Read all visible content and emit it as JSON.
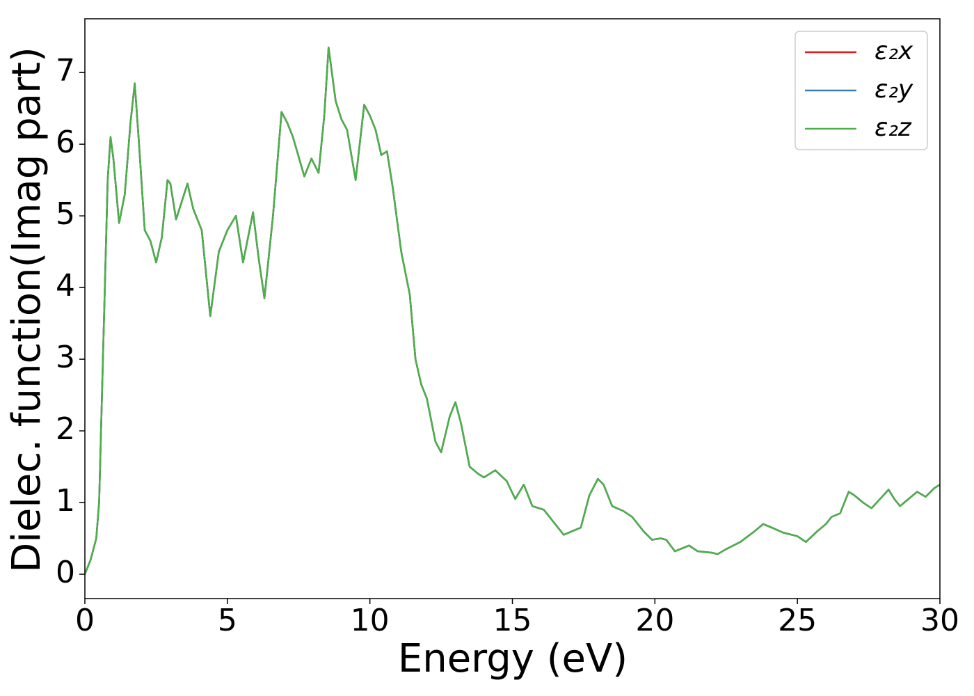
{
  "chart_data": {
    "type": "line",
    "xlabel": "Energy (eV)",
    "ylabel": "Dielec. function(Imag part)",
    "xlim": [
      0,
      30
    ],
    "ylim": [
      -0.34,
      7.75
    ],
    "xticks": [
      0,
      5,
      10,
      15,
      20,
      25,
      30
    ],
    "yticks": [
      0,
      1,
      2,
      3,
      4,
      5,
      6,
      7
    ],
    "grid": false,
    "legend": "upper right",
    "x": [
      0,
      0.2,
      0.4,
      0.5,
      0.6,
      0.7,
      0.8,
      0.9,
      1.0,
      1.2,
      1.4,
      1.6,
      1.75,
      1.9,
      2.1,
      2.3,
      2.5,
      2.7,
      2.9,
      3.0,
      3.2,
      3.4,
      3.6,
      3.8,
      4.1,
      4.4,
      4.7,
      5.0,
      5.3,
      5.55,
      5.9,
      6.1,
      6.3,
      6.6,
      6.9,
      7.1,
      7.3,
      7.7,
      7.95,
      8.2,
      8.4,
      8.55,
      8.8,
      9.0,
      9.2,
      9.5,
      9.8,
      10.0,
      10.2,
      10.4,
      10.6,
      10.8,
      11.1,
      11.4,
      11.6,
      11.8,
      12.0,
      12.3,
      12.5,
      12.8,
      13.0,
      13.2,
      13.5,
      13.8,
      14.0,
      14.4,
      14.8,
      15.1,
      15.4,
      15.7,
      16.1,
      16.4,
      16.8,
      17.1,
      17.4,
      17.7,
      18.0,
      18.2,
      18.5,
      18.9,
      19.2,
      19.6,
      19.9,
      20.2,
      20.4,
      20.7,
      21.2,
      21.5,
      22.0,
      22.2,
      22.5,
      23.0,
      23.5,
      23.8,
      24.1,
      24.5,
      25.0,
      25.3,
      25.7,
      26.0,
      26.2,
      26.5,
      26.8,
      27.0,
      27.3,
      27.6,
      28.2,
      28.4,
      28.6,
      28.9,
      29.2,
      29.5,
      29.8,
      30.0
    ],
    "series": [
      {
        "name": "ε₂x",
        "color": "#e41a1c",
        "values": [
          0,
          0.2,
          0.5,
          1.0,
          2.5,
          4.0,
          5.5,
          6.1,
          5.8,
          4.9,
          5.3,
          6.3,
          6.85,
          6.0,
          4.8,
          4.65,
          4.35,
          4.7,
          5.5,
          5.45,
          4.95,
          5.2,
          5.45,
          5.1,
          4.8,
          3.6,
          4.5,
          4.8,
          5.0,
          4.35,
          5.05,
          4.4,
          3.85,
          5.0,
          6.45,
          6.3,
          6.1,
          5.55,
          5.8,
          5.6,
          6.4,
          7.35,
          6.6,
          6.35,
          6.2,
          5.5,
          6.55,
          6.4,
          6.2,
          5.85,
          5.9,
          5.4,
          4.5,
          3.9,
          3.0,
          2.65,
          2.45,
          1.85,
          1.7,
          2.2,
          2.4,
          2.1,
          1.5,
          1.4,
          1.35,
          1.45,
          1.3,
          1.05,
          1.25,
          0.95,
          0.9,
          0.75,
          0.55,
          0.6,
          0.65,
          1.1,
          1.33,
          1.25,
          0.95,
          0.88,
          0.8,
          0.6,
          0.48,
          0.5,
          0.48,
          0.32,
          0.4,
          0.32,
          0.3,
          0.28,
          0.35,
          0.45,
          0.6,
          0.7,
          0.65,
          0.58,
          0.53,
          0.45,
          0.6,
          0.7,
          0.8,
          0.85,
          1.15,
          1.1,
          1.0,
          0.92,
          1.18,
          1.05,
          0.95,
          1.05,
          1.15,
          1.08,
          1.2,
          1.25
        ]
      },
      {
        "name": "ε₂y",
        "color": "#377eb8",
        "values": [
          0,
          0.2,
          0.5,
          1.0,
          2.5,
          4.0,
          5.5,
          6.1,
          5.8,
          4.9,
          5.3,
          6.3,
          6.85,
          6.0,
          4.8,
          4.65,
          4.35,
          4.7,
          5.5,
          5.45,
          4.95,
          5.2,
          5.45,
          5.1,
          4.8,
          3.6,
          4.5,
          4.8,
          5.0,
          4.35,
          5.05,
          4.4,
          3.85,
          5.0,
          6.45,
          6.3,
          6.1,
          5.55,
          5.8,
          5.6,
          6.4,
          7.35,
          6.6,
          6.35,
          6.2,
          5.5,
          6.55,
          6.4,
          6.2,
          5.85,
          5.9,
          5.4,
          4.5,
          3.9,
          3.0,
          2.65,
          2.45,
          1.85,
          1.7,
          2.2,
          2.4,
          2.1,
          1.5,
          1.4,
          1.35,
          1.45,
          1.3,
          1.05,
          1.25,
          0.95,
          0.9,
          0.75,
          0.55,
          0.6,
          0.65,
          1.1,
          1.33,
          1.25,
          0.95,
          0.88,
          0.8,
          0.6,
          0.48,
          0.5,
          0.48,
          0.32,
          0.4,
          0.32,
          0.3,
          0.28,
          0.35,
          0.45,
          0.6,
          0.7,
          0.65,
          0.58,
          0.53,
          0.45,
          0.6,
          0.7,
          0.8,
          0.85,
          1.15,
          1.1,
          1.0,
          0.92,
          1.18,
          1.05,
          0.95,
          1.05,
          1.15,
          1.08,
          1.2,
          1.25
        ]
      },
      {
        "name": "ε₂z",
        "color": "#4daf4a",
        "values": [
          0,
          0.2,
          0.5,
          1.0,
          2.5,
          4.0,
          5.5,
          6.1,
          5.8,
          4.9,
          5.3,
          6.3,
          6.85,
          6.0,
          4.8,
          4.65,
          4.35,
          4.7,
          5.5,
          5.45,
          4.95,
          5.2,
          5.45,
          5.1,
          4.8,
          3.6,
          4.5,
          4.8,
          5.0,
          4.35,
          5.05,
          4.4,
          3.85,
          5.0,
          6.45,
          6.3,
          6.1,
          5.55,
          5.8,
          5.6,
          6.4,
          7.35,
          6.6,
          6.35,
          6.2,
          5.5,
          6.55,
          6.4,
          6.2,
          5.85,
          5.9,
          5.4,
          4.5,
          3.9,
          3.0,
          2.65,
          2.45,
          1.85,
          1.7,
          2.2,
          2.4,
          2.1,
          1.5,
          1.4,
          1.35,
          1.45,
          1.3,
          1.05,
          1.25,
          0.95,
          0.9,
          0.75,
          0.55,
          0.6,
          0.65,
          1.1,
          1.33,
          1.25,
          0.95,
          0.88,
          0.8,
          0.6,
          0.48,
          0.5,
          0.48,
          0.32,
          0.4,
          0.32,
          0.3,
          0.28,
          0.35,
          0.45,
          0.6,
          0.7,
          0.65,
          0.58,
          0.53,
          0.45,
          0.6,
          0.7,
          0.8,
          0.85,
          1.15,
          1.1,
          1.0,
          0.92,
          1.18,
          1.05,
          0.95,
          1.05,
          1.15,
          1.08,
          1.2,
          1.25
        ]
      }
    ]
  }
}
